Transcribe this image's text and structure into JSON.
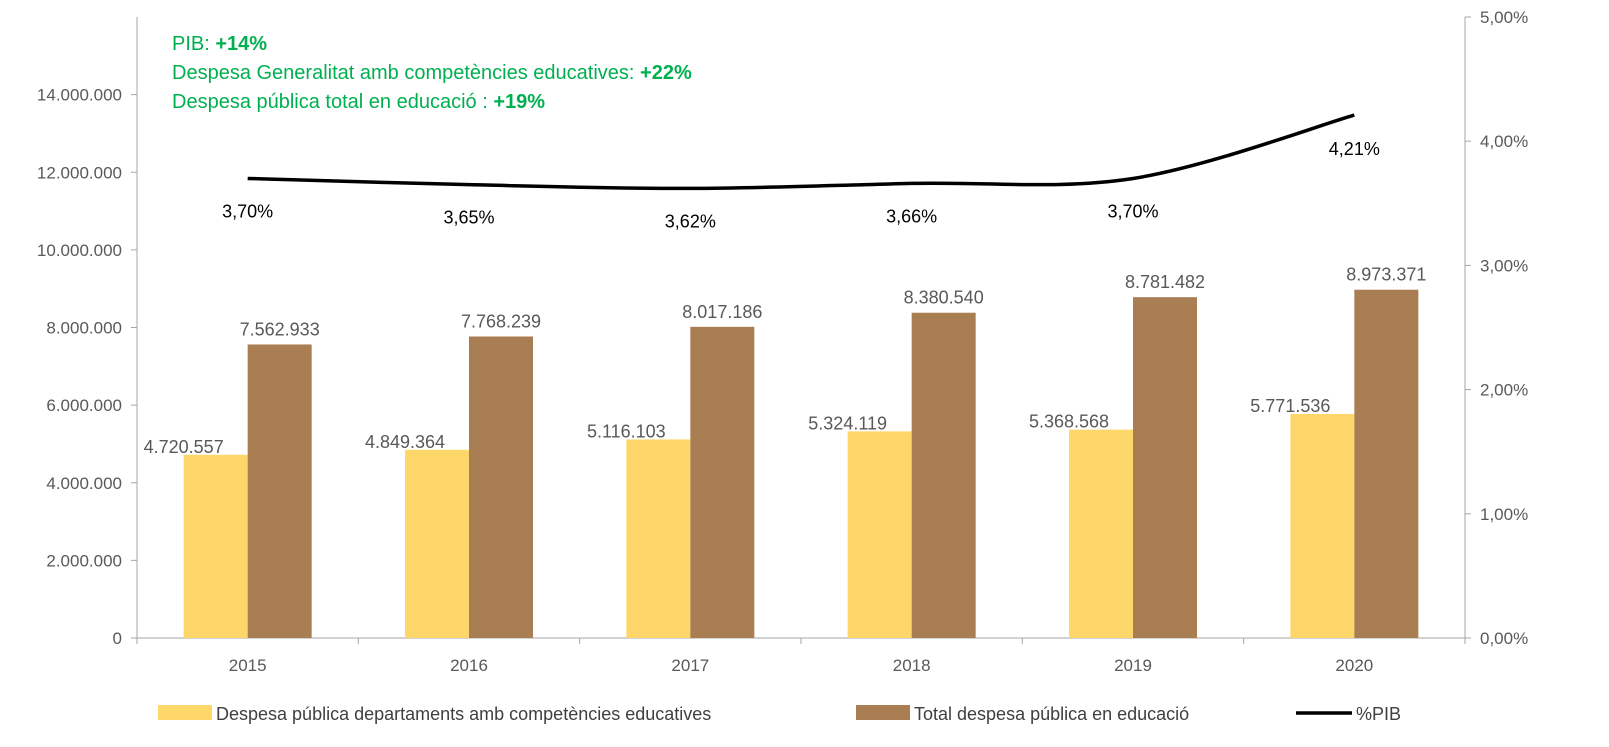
{
  "chart_data": {
    "type": "bar",
    "categories": [
      "2015",
      "2016",
      "2017",
      "2018",
      "2019",
      "2020"
    ],
    "series": [
      {
        "name": "Despesa pública departaments amb competències educatives",
        "type": "bar",
        "axis": "left",
        "color": "#fdd76a",
        "values": [
          4720557,
          4849364,
          5116103,
          5324119,
          5368568,
          5771536
        ],
        "labels": [
          "4.720.557",
          "4.849.364",
          "5.116.103",
          "5.324.119",
          "5.368.568",
          "5.771.536"
        ]
      },
      {
        "name": "Total despesa pública en educació",
        "type": "bar",
        "axis": "left",
        "color": "#a97e53",
        "values": [
          7562933,
          7768239,
          8017186,
          8380540,
          8781482,
          8973371
        ],
        "labels": [
          "7.562.933",
          "7.768.239",
          "8.017.186",
          "8.380.540",
          "8.781.482",
          "8.973.371"
        ]
      },
      {
        "name": "%PIB",
        "type": "line",
        "axis": "right",
        "color": "#000000",
        "values": [
          3.7,
          3.65,
          3.62,
          3.66,
          3.7,
          4.21
        ],
        "labels": [
          "3,70%",
          "3,65%",
          "3,62%",
          "3,66%",
          "3,70%",
          "4,21%"
        ]
      }
    ],
    "y_left": {
      "range": [
        0,
        16000000
      ],
      "ticks": [
        0,
        2000000,
        4000000,
        6000000,
        8000000,
        10000000,
        12000000,
        14000000
      ],
      "tick_labels": [
        "0",
        "2.000.000",
        "4.000.000",
        "6.000.000",
        "8.000.000",
        "10.000.000",
        "12.000.000",
        "14.000.000"
      ]
    },
    "y_right": {
      "range": [
        0,
        5
      ],
      "ticks": [
        0,
        1,
        2,
        3,
        4,
        5
      ],
      "tick_labels": [
        "0,00%",
        "1,00%",
        "2,00%",
        "3,00%",
        "4,00%",
        "5,00%"
      ]
    },
    "legend_position": "bottom",
    "grid": false,
    "annotations": [
      {
        "label": "PIB:",
        "value": "+14%"
      },
      {
        "label": "Despesa Generalitat amb competències educatives:",
        "value": "+22%"
      },
      {
        "label": "Despesa pública total en educació :",
        "value": "+19%"
      }
    ]
  },
  "colors": {
    "annotation": "#00b050",
    "axis": "#a6a6a6",
    "tick_text": "#595959"
  }
}
